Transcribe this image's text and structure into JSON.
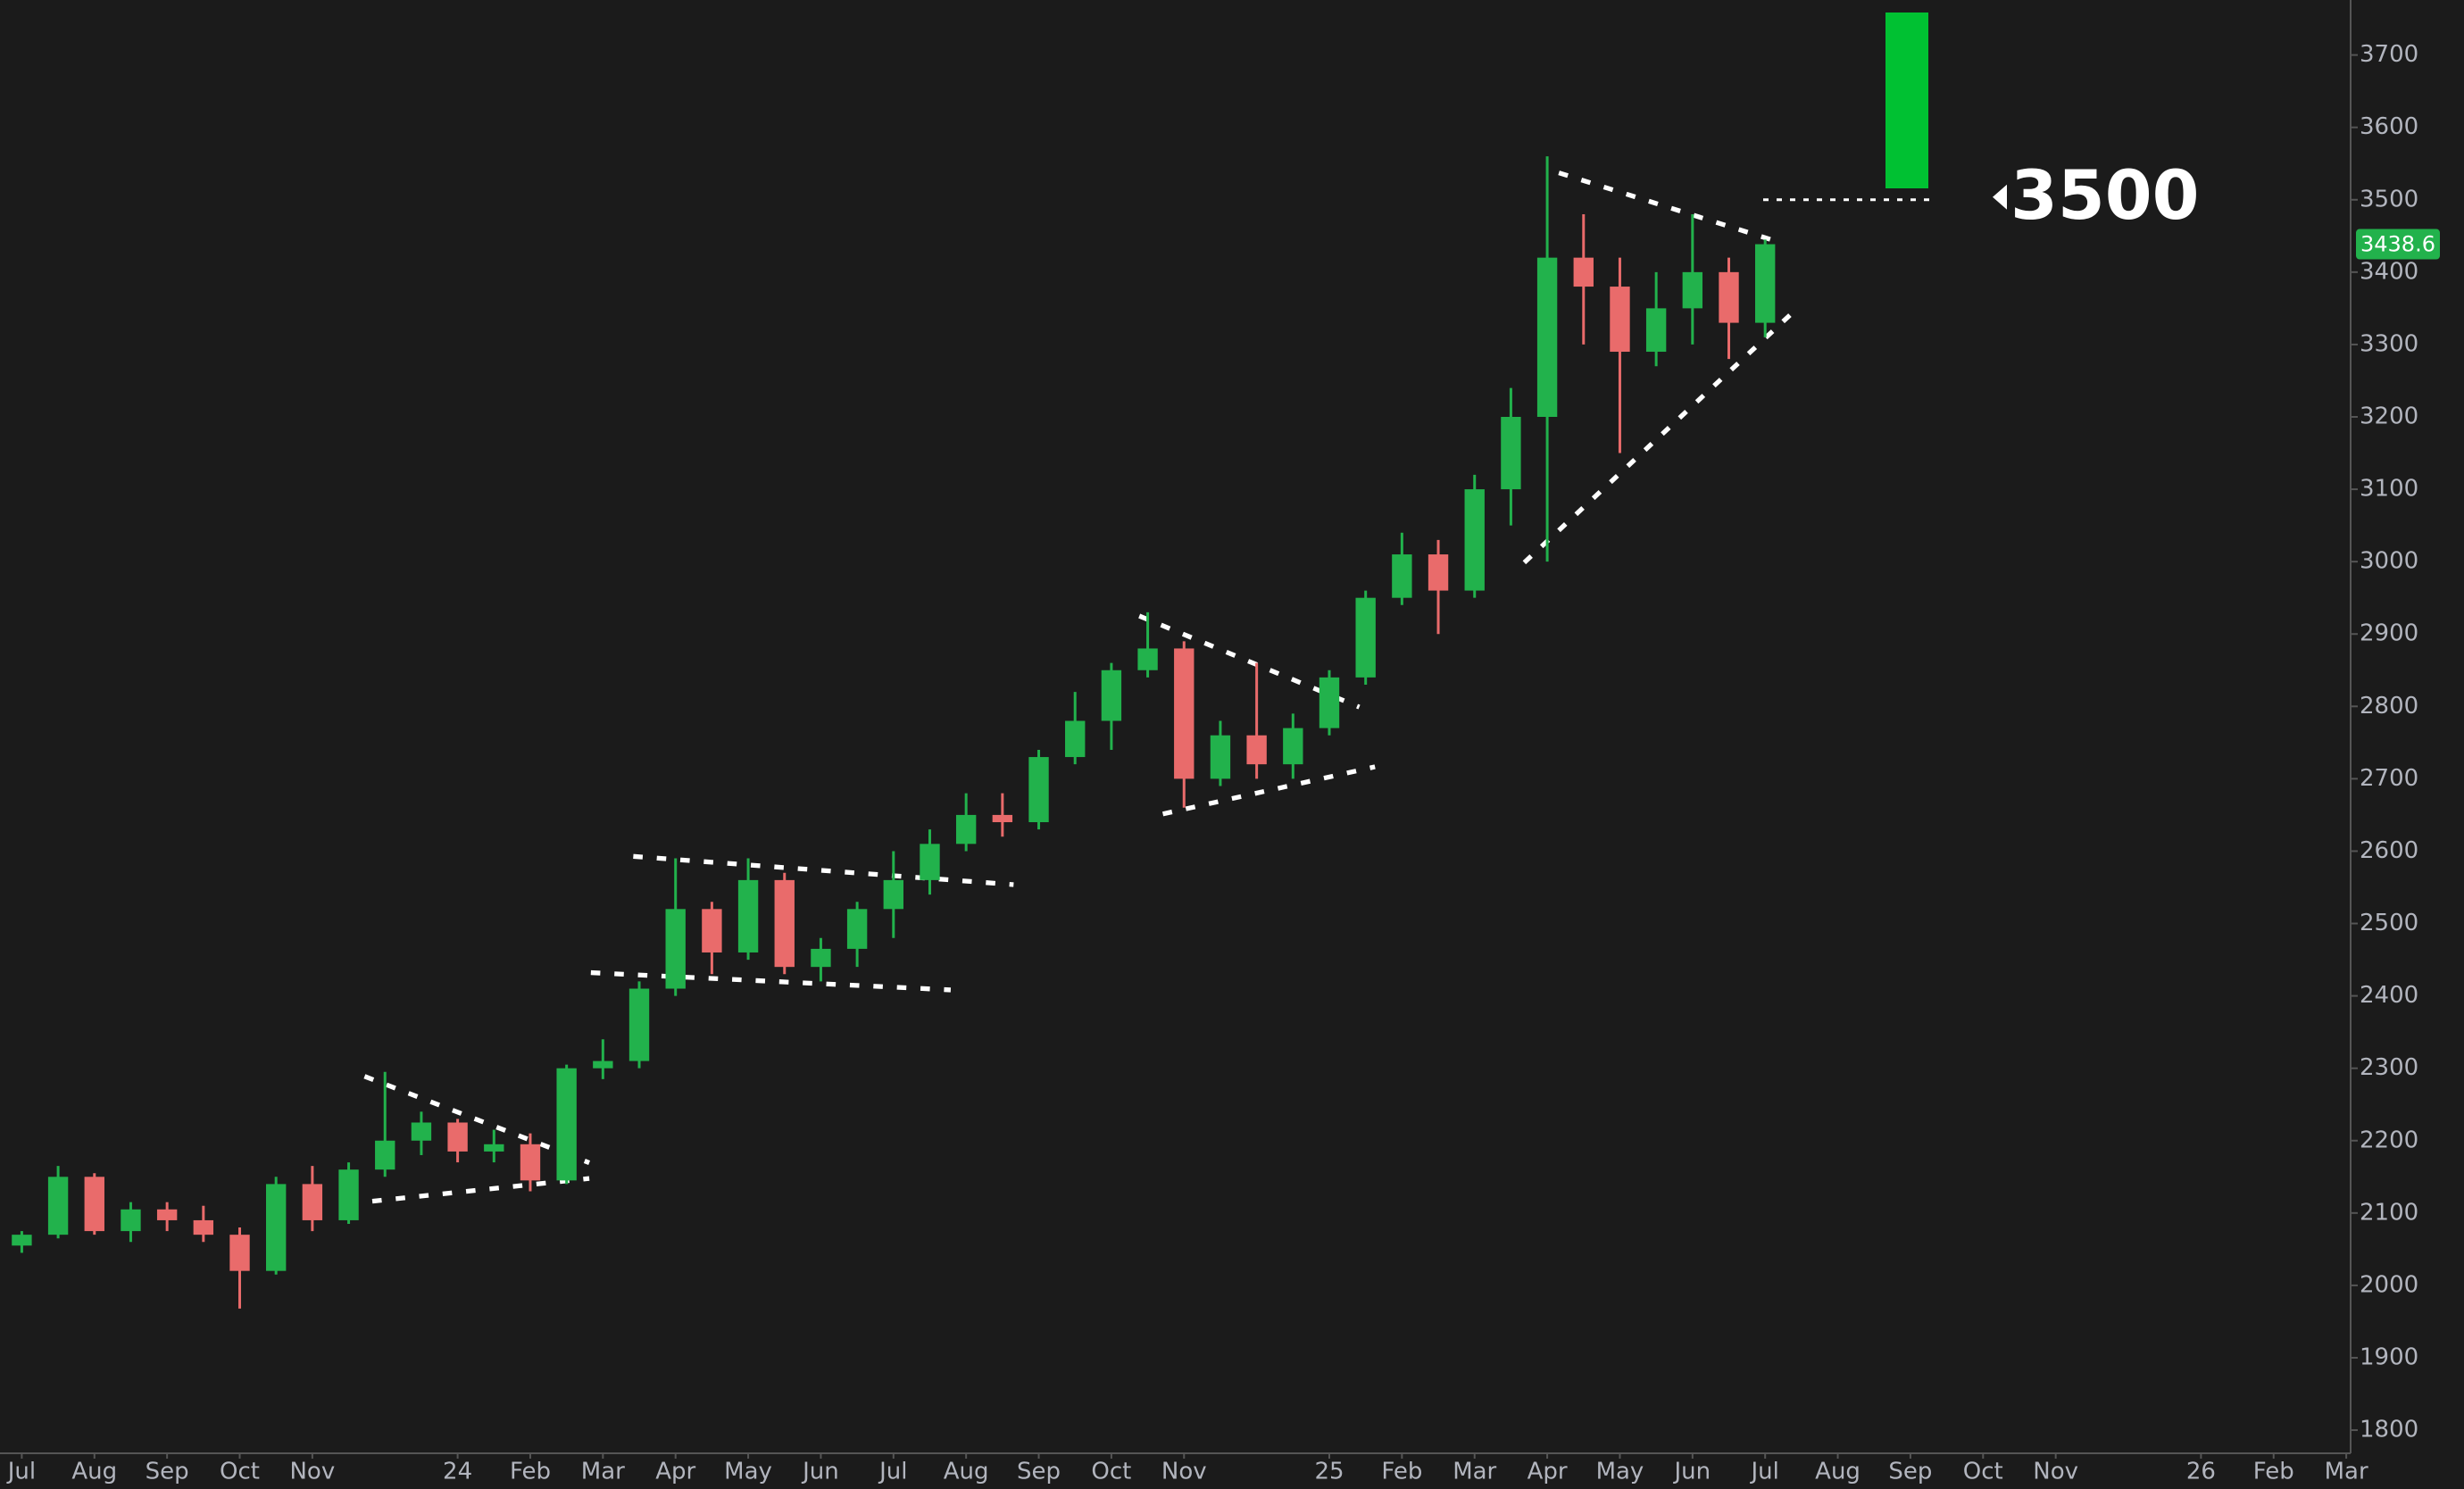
{
  "chart_data": {
    "type": "candlestick",
    "x": [
      0,
      0.5,
      1,
      1.5,
      2,
      2.5,
      3,
      3.5,
      4,
      4.5,
      5,
      5.5,
      6,
      6.5,
      7,
      7.5,
      8,
      8.5,
      9,
      9.5,
      10,
      10.5,
      11,
      11.5,
      12,
      12.5,
      13,
      13.5,
      14,
      14.5,
      15,
      15.5,
      16,
      16.5,
      17,
      17.5,
      18,
      18.5,
      19,
      19.5,
      20,
      20.5,
      21,
      21.5,
      22,
      22.5,
      23,
      23.5,
      24
    ],
    "open": [
      2055,
      2070,
      2150,
      2075,
      2105,
      2090,
      2070,
      2020,
      2140,
      2090,
      2160,
      2200,
      2225,
      2185,
      2195,
      2145,
      2300,
      2310,
      2410,
      2520,
      2460,
      2560,
      2440,
      2465,
      2520,
      2560,
      2610,
      2650,
      2640,
      2730,
      2780,
      2850,
      2880,
      2700,
      2760,
      2720,
      2770,
      2840,
      2950,
      3010,
      2960,
      3100,
      3200,
      3420,
      3380,
      3290,
      3350,
      3400,
      3330
    ],
    "high": [
      2075,
      2165,
      2155,
      2115,
      2115,
      2110,
      2080,
      2150,
      2165,
      2170,
      2295,
      2240,
      2230,
      2215,
      2210,
      2305,
      2340,
      2420,
      2590,
      2530,
      2590,
      2570,
      2480,
      2530,
      2600,
      2630,
      2680,
      2680,
      2740,
      2820,
      2860,
      2930,
      2890,
      2780,
      2860,
      2790,
      2850,
      2960,
      3040,
      3030,
      3120,
      3240,
      3560,
      3480,
      3420,
      3400,
      3480,
      3420,
      3445
    ],
    "low": [
      2045,
      2065,
      2070,
      2060,
      2075,
      2060,
      1968,
      2015,
      2075,
      2085,
      2150,
      2180,
      2170,
      2170,
      2130,
      2140,
      2285,
      2300,
      2400,
      2430,
      2450,
      2430,
      2420,
      2440,
      2480,
      2540,
      2600,
      2620,
      2630,
      2720,
      2740,
      2840,
      2660,
      2690,
      2700,
      2700,
      2760,
      2830,
      2940,
      2900,
      2950,
      3050,
      3000,
      3300,
      3150,
      3270,
      3300,
      3280,
      3310
    ],
    "close": [
      2070,
      2150,
      2075,
      2105,
      2090,
      2070,
      2020,
      2140,
      2090,
      2160,
      2200,
      2225,
      2185,
      2195,
      2145,
      2300,
      2310,
      2410,
      2520,
      2460,
      2560,
      2440,
      2465,
      2520,
      2560,
      2610,
      2650,
      2640,
      2730,
      2780,
      2850,
      2880,
      2700,
      2760,
      2720,
      2770,
      2840,
      2950,
      3010,
      2960,
      3100,
      3200,
      3420,
      3380,
      3290,
      3350,
      3400,
      3330,
      3438.6
    ],
    "up_color": "#22b24c",
    "down_color": "#e96b6b",
    "xlim": [
      -0.3,
      32.06
    ],
    "xticks": [
      {
        "value": 0,
        "label": "Jul"
      },
      {
        "value": 1,
        "label": "Aug"
      },
      {
        "value": 2,
        "label": "Sep"
      },
      {
        "value": 3,
        "label": "Oct"
      },
      {
        "value": 4,
        "label": "Nov"
      },
      {
        "value": 6,
        "label": "24"
      },
      {
        "value": 7,
        "label": "Feb"
      },
      {
        "value": 8,
        "label": "Mar"
      },
      {
        "value": 9,
        "label": "Apr"
      },
      {
        "value": 10,
        "label": "May"
      },
      {
        "value": 11,
        "label": "Jun"
      },
      {
        "value": 12,
        "label": "Jul"
      },
      {
        "value": 13,
        "label": "Aug"
      },
      {
        "value": 14,
        "label": "Sep"
      },
      {
        "value": 15,
        "label": "Oct"
      },
      {
        "value": 16,
        "label": "Nov"
      },
      {
        "value": 18,
        "label": "25"
      },
      {
        "value": 19,
        "label": "Feb"
      },
      {
        "value": 20,
        "label": "Mar"
      },
      {
        "value": 21,
        "label": "Apr"
      },
      {
        "value": 22,
        "label": "May"
      },
      {
        "value": 23,
        "label": "Jun"
      },
      {
        "value": 24,
        "label": "Jul"
      },
      {
        "value": 25,
        "label": "Aug"
      },
      {
        "value": 26,
        "label": "Sep"
      },
      {
        "value": 27,
        "label": "Oct"
      },
      {
        "value": 28,
        "label": "Nov"
      },
      {
        "value": 30,
        "label": "26"
      },
      {
        "value": 31,
        "label": "Feb"
      },
      {
        "value": 32,
        "label": "Mar"
      }
    ],
    "ylim": [
      1768,
      3776
    ],
    "yticks": [
      1800,
      1900,
      2000,
      2100,
      2200,
      2300,
      2400,
      2500,
      2600,
      2700,
      2800,
      2900,
      3000,
      3100,
      3200,
      3300,
      3400,
      3500,
      3600,
      3700
    ],
    "target": 3500,
    "target_color": "#00c132"
  }
}
